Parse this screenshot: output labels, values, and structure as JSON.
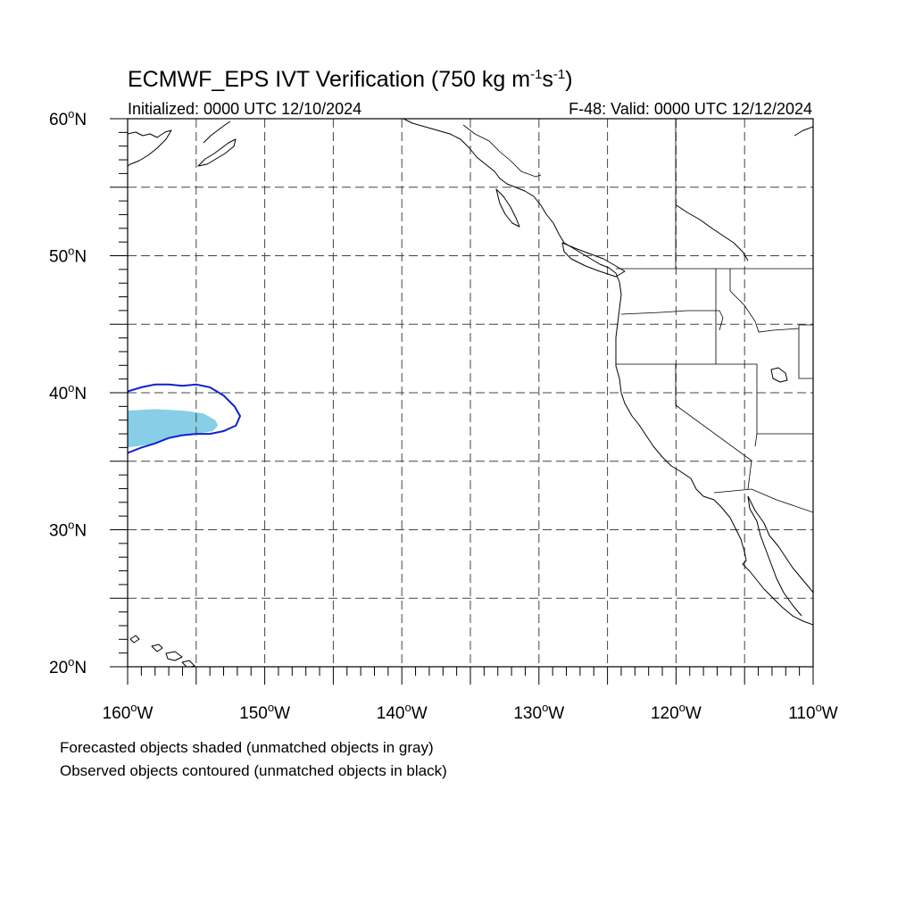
{
  "title": {
    "main": "ECMWF_EPS IVT Verification (750 kg m",
    "sup1": "-1",
    "mid": "s",
    "sup2": "-1",
    "end": ")"
  },
  "subtitle_left": "Initialized: 0000 UTC 12/10/2024",
  "subtitle_right": "F-48: Valid: 0000 UTC 12/12/2024",
  "map_extent": {
    "lon_min": -160,
    "lon_max": -110,
    "lat_min": 20,
    "lat_max": 60
  },
  "lat_labels": [
    {
      "lat": 60,
      "label": "60",
      "suffix": "N"
    },
    {
      "lat": 50,
      "label": "50",
      "suffix": "N"
    },
    {
      "lat": 40,
      "label": "40",
      "suffix": "N"
    },
    {
      "lat": 30,
      "label": "30",
      "suffix": "N"
    },
    {
      "lat": 20,
      "label": "20",
      "suffix": "N"
    }
  ],
  "lon_labels": [
    {
      "lon": -160,
      "label": "160",
      "suffix": "W"
    },
    {
      "lon": -150,
      "label": "150",
      "suffix": "W"
    },
    {
      "lon": -140,
      "label": "140",
      "suffix": "W"
    },
    {
      "lon": -130,
      "label": "130",
      "suffix": "W"
    },
    {
      "lon": -120,
      "label": "120",
      "suffix": "W"
    },
    {
      "lon": -110,
      "label": "110",
      "suffix": "W"
    }
  ],
  "grid": {
    "lon_step": 5,
    "lat_step": 5,
    "style": "dashed"
  },
  "colors": {
    "forecast_fill": "#87CEE6",
    "observed_contour": "#1020D0",
    "grid": "#444444"
  },
  "objects": {
    "forecast": {
      "name": "forecast-ivt-object",
      "polygon": [
        [
          -160,
          38.7
        ],
        [
          -158,
          38.8
        ],
        [
          -156,
          38.7
        ],
        [
          -154.5,
          38.5
        ],
        [
          -153.6,
          38.0
        ],
        [
          -153.4,
          37.6
        ],
        [
          -153.8,
          37.2
        ],
        [
          -155,
          37.0
        ],
        [
          -156.5,
          36.8
        ],
        [
          -157.5,
          36.5
        ],
        [
          -158.5,
          36.2
        ],
        [
          -160,
          36.0
        ]
      ]
    },
    "observed": {
      "name": "observed-ivt-object",
      "polygon": [
        [
          -160,
          40.1
        ],
        [
          -159,
          40.4
        ],
        [
          -158,
          40.6
        ],
        [
          -157,
          40.6
        ],
        [
          -156,
          40.5
        ],
        [
          -155,
          40.6
        ],
        [
          -154,
          40.4
        ],
        [
          -153,
          39.8
        ],
        [
          -152.2,
          39.0
        ],
        [
          -151.8,
          38.3
        ],
        [
          -152.1,
          37.6
        ],
        [
          -153,
          37.2
        ],
        [
          -154,
          37.0
        ],
        [
          -155,
          37.0
        ],
        [
          -156,
          36.9
        ],
        [
          -157,
          36.7
        ],
        [
          -158,
          36.3
        ],
        [
          -159,
          36.0
        ],
        [
          -160,
          35.6
        ]
      ]
    }
  },
  "footnotes": [
    "Forecasted objects shaded (unmatched objects in gray)",
    "Observed objects contoured (unmatched objects in black)"
  ]
}
